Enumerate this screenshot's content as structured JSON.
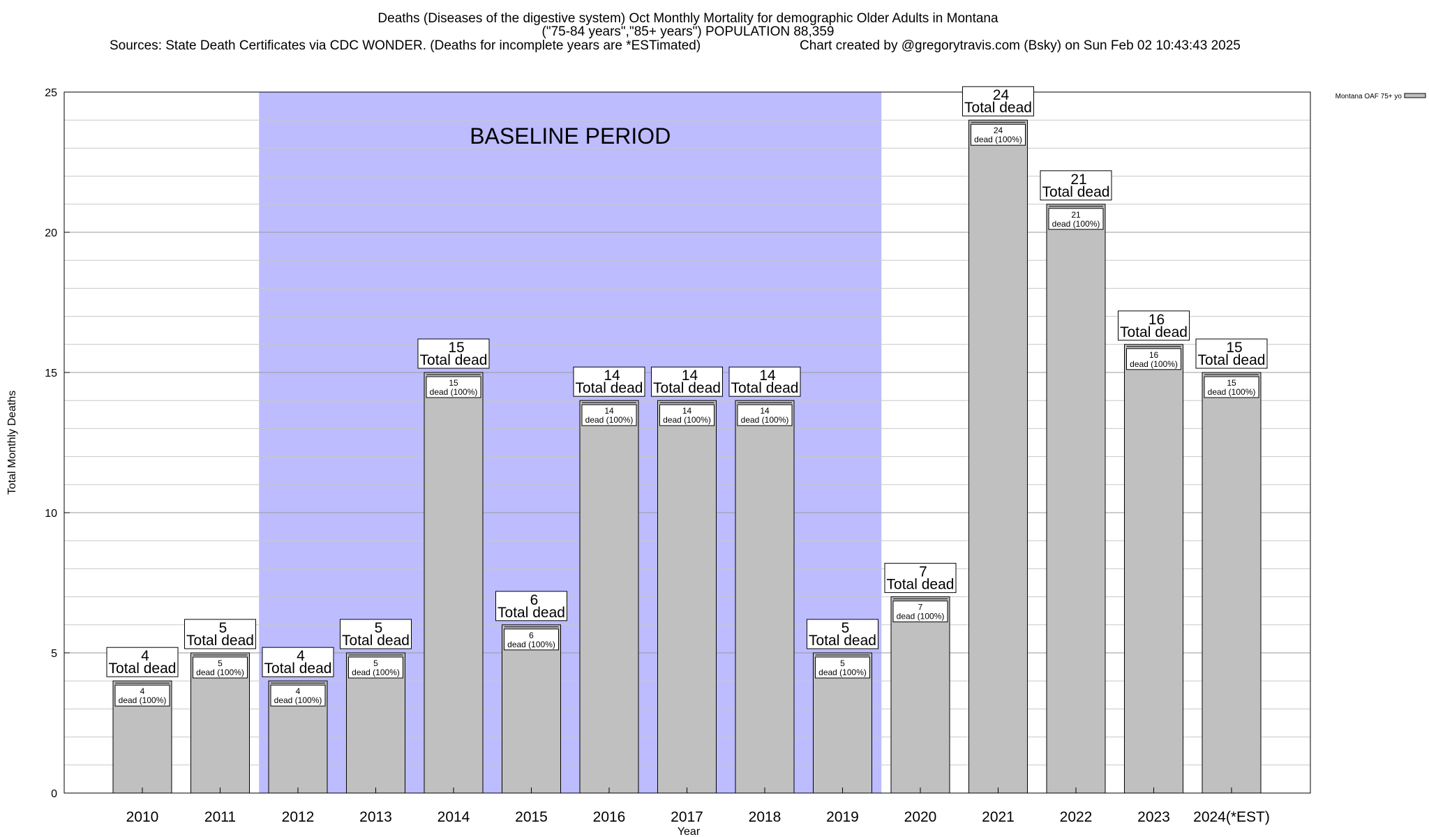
{
  "chart_data": {
    "type": "bar",
    "title": "Deaths (Diseases of the digestive system) Oct Monthly Mortality for demographic Older Adults in Montana",
    "subtitle": "(\"75-84 years\",\"85+ years\") POPULATION 88,359",
    "sources": "Sources: State Death Certificates via CDC WONDER. (Deaths for incomplete years are *ESTimated)",
    "credit": "Chart created by @gregorytravis.com (Bsky) on Sun Feb 02 10:43:43 2025",
    "xlabel": "Year",
    "ylabel": "Total Monthly Deaths",
    "ylim": [
      0,
      25
    ],
    "yticks": [
      "0",
      "5",
      "10",
      "15",
      "20",
      "25"
    ],
    "grid": true,
    "legend": {
      "position": "top-right",
      "entries": [
        "Montana OAF 75+ yo"
      ]
    },
    "baseline_period": {
      "label": "BASELINE PERIOD",
      "start": "2012",
      "end": "2019",
      "color": "#bcbcff"
    },
    "bar_color": "#c0c0c0",
    "categories": [
      "2010",
      "2011",
      "2012",
      "2013",
      "2014",
      "2015",
      "2016",
      "2017",
      "2018",
      "2019",
      "2020",
      "2021",
      "2022",
      "2023",
      "2024(*EST)"
    ],
    "series": [
      {
        "name": "Montana OAF 75+ yo",
        "values": [
          4,
          5,
          4,
          5,
          15,
          6,
          14,
          14,
          14,
          5,
          7,
          24,
          21,
          16,
          15
        ]
      }
    ],
    "total_label": "Total dead",
    "inner_label": "dead (100%)"
  }
}
